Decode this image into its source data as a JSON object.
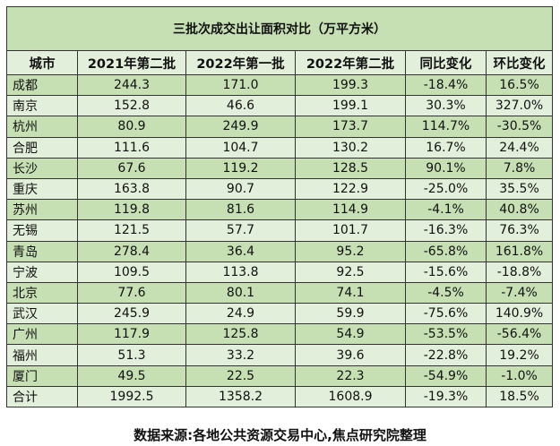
{
  "table": {
    "title": "三批次成交出让面积对比（万平方米）",
    "headers": [
      "城市",
      "2021年第二批",
      "2022年第一批",
      "2022年第二批",
      "同比变化",
      "环比变化"
    ],
    "rows": [
      [
        "成都",
        "244.3",
        "171.0",
        "199.3",
        "-18.4%",
        "16.5%"
      ],
      [
        "南京",
        "152.8",
        "46.6",
        "199.1",
        "30.3%",
        "327.0%"
      ],
      [
        "杭州",
        "80.9",
        "249.9",
        "173.7",
        "114.7%",
        "-30.5%"
      ],
      [
        "合肥",
        "111.6",
        "104.7",
        "130.2",
        "16.7%",
        "24.4%"
      ],
      [
        "长沙",
        "67.6",
        "119.2",
        "128.5",
        "90.1%",
        "7.8%"
      ],
      [
        "重庆",
        "163.8",
        "90.7",
        "122.9",
        "-25.0%",
        "35.5%"
      ],
      [
        "苏州",
        "119.8",
        "81.6",
        "114.9",
        "-4.1%",
        "40.8%"
      ],
      [
        "无锡",
        "121.5",
        "57.7",
        "101.7",
        "-16.3%",
        "76.3%"
      ],
      [
        "青岛",
        "278.4",
        "36.4",
        "95.2",
        "-65.8%",
        "161.8%"
      ],
      [
        "宁波",
        "109.5",
        "113.8",
        "92.5",
        "-15.6%",
        "-18.8%"
      ],
      [
        "北京",
        "77.6",
        "80.1",
        "74.1",
        "-4.5%",
        "-7.4%"
      ],
      [
        "武汉",
        "245.9",
        "24.9",
        "59.9",
        "-75.6%",
        "140.9%"
      ],
      [
        "广州",
        "117.9",
        "125.8",
        "54.9",
        "-53.5%",
        "-56.4%"
      ],
      [
        "福州",
        "51.3",
        "33.2",
        "39.6",
        "-22.8%",
        "19.2%"
      ],
      [
        "厦门",
        "49.5",
        "22.5",
        "22.3",
        "-54.9%",
        "-1.0%"
      ],
      [
        "合计",
        "1992.5",
        "1358.2",
        "1608.9",
        "-19.3%",
        "18.5%"
      ]
    ]
  },
  "footer": "数据来源:各地公共资源交易中心,焦点研究院整理",
  "watermark": "焦点研究院",
  "colors": {
    "dark_row": "#c6e0b4",
    "light_row": "#e2efda"
  }
}
